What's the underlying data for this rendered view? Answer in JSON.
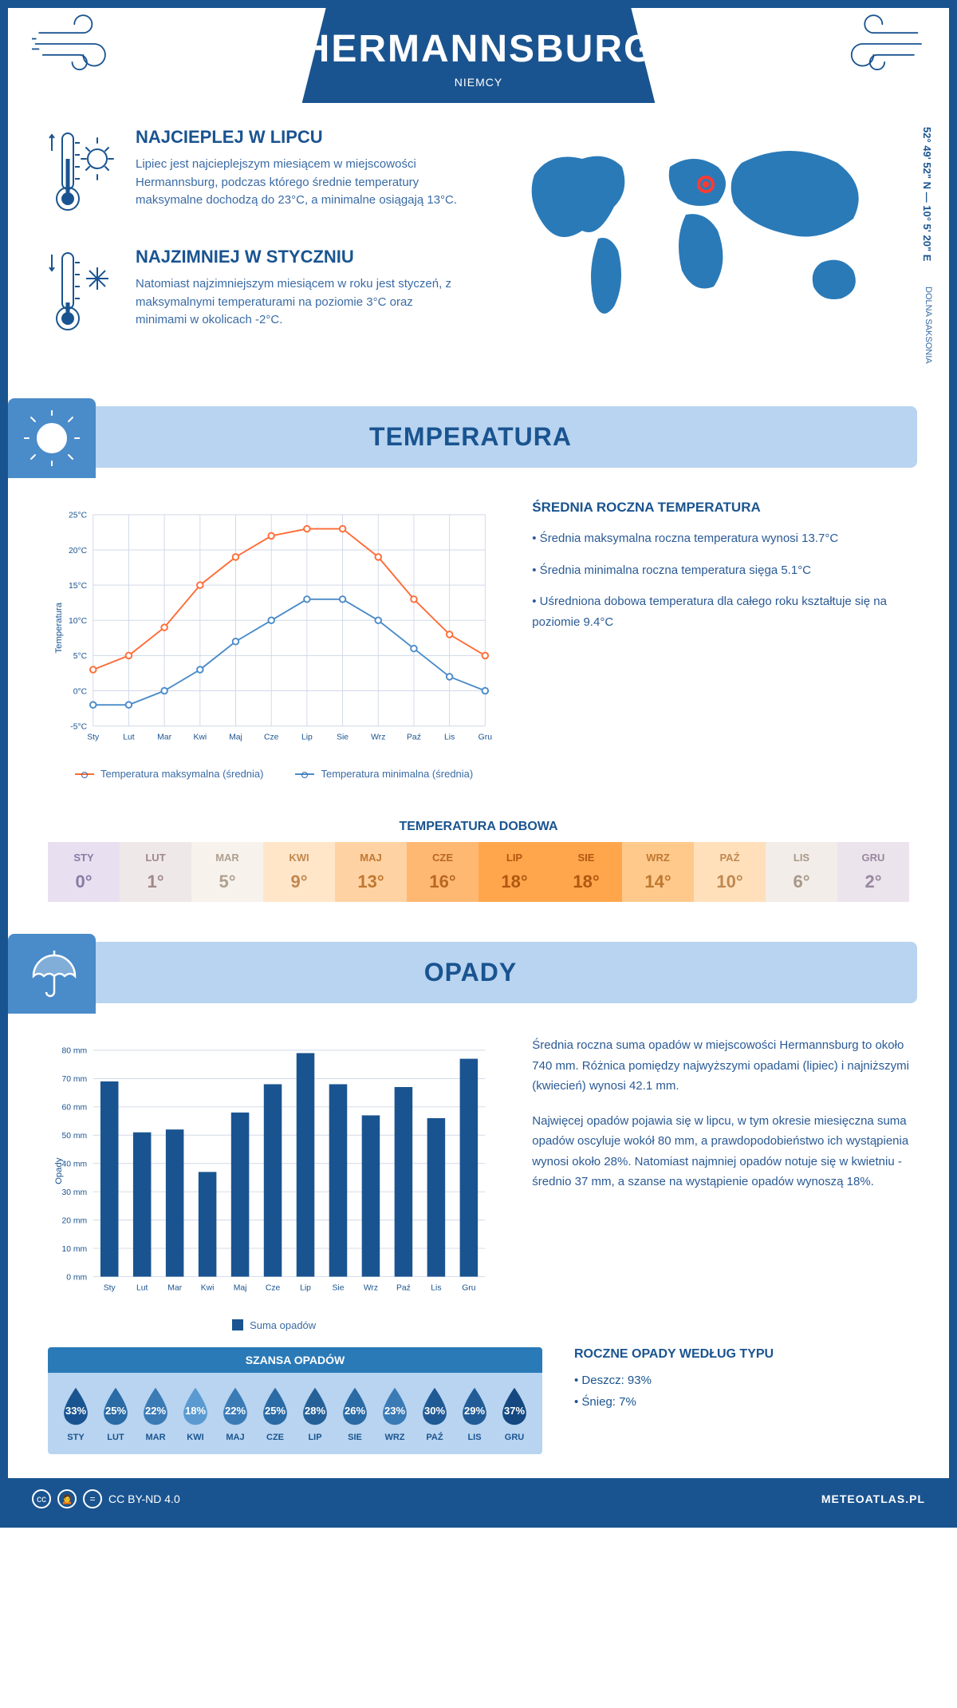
{
  "colors": {
    "primary": "#1a5490",
    "light_blue": "#b8d4f0",
    "mid_blue": "#4a8bc9",
    "line_max": "#ff6b35",
    "line_min": "#4a8bc9",
    "bar": "#1a5490",
    "marker": "#ff3b30"
  },
  "header": {
    "city": "HERMANNSBURG",
    "country": "NIEMCY"
  },
  "coords": "52° 49' 52\" N — 10° 5' 20\" E",
  "region": "DOLNA SAKSONIA",
  "intro": {
    "hot": {
      "title": "NAJCIEPLEJ W LIPCU",
      "text": "Lipiec jest najcieplejszym miesiącem w miejscowości Hermannsburg, podczas którego średnie temperatury maksymalne dochodzą do 23°C, a minimalne osiągają 13°C."
    },
    "cold": {
      "title": "NAJZIMNIEJ W STYCZNIU",
      "text": "Natomiast najzimniejszym miesiącem w roku jest styczeń, z maksymalnymi temperaturami na poziomie 3°C oraz minimami w okolicach -2°C."
    }
  },
  "temp_section": {
    "title": "TEMPERATURA"
  },
  "months": [
    "Sty",
    "Lut",
    "Mar",
    "Kwi",
    "Maj",
    "Cze",
    "Lip",
    "Sie",
    "Wrz",
    "Paź",
    "Lis",
    "Gru"
  ],
  "months_upper": [
    "STY",
    "LUT",
    "MAR",
    "KWI",
    "MAJ",
    "CZE",
    "LIP",
    "SIE",
    "WRZ",
    "PAŹ",
    "LIS",
    "GRU"
  ],
  "temp_chart": {
    "type": "line",
    "ylabel": "Temperatura",
    "ylim": [
      -5,
      25
    ],
    "yticks": [
      -5,
      0,
      5,
      10,
      15,
      20,
      25
    ],
    "ytick_labels": [
      "-5°C",
      "0°C",
      "5°C",
      "10°C",
      "15°C",
      "20°C",
      "25°C"
    ],
    "series": [
      {
        "name": "Temperatura maksymalna (średnia)",
        "color": "#ff6b35",
        "values": [
          3,
          5,
          9,
          15,
          19,
          22,
          23,
          23,
          19,
          13,
          8,
          5
        ]
      },
      {
        "name": "Temperatura minimalna (średnia)",
        "color": "#4a8bc9",
        "values": [
          -2,
          -2,
          0,
          3,
          7,
          10,
          13,
          13,
          10,
          6,
          2,
          0
        ]
      }
    ],
    "grid_color": "#d0d8e8",
    "background": "#ffffff"
  },
  "temp_summary": {
    "title": "ŚREDNIA ROCZNA TEMPERATURA",
    "bullets": [
      "Średnia maksymalna roczna temperatura wynosi 13.7°C",
      "Średnia minimalna roczna temperatura sięga 5.1°C",
      "Uśredniona dobowa temperatura dla całego roku kształtuje się na poziomie 9.4°C"
    ]
  },
  "dobowa": {
    "title": "TEMPERATURA DOBOWA",
    "values": [
      "0°",
      "1°",
      "5°",
      "9°",
      "13°",
      "16°",
      "18°",
      "18°",
      "14°",
      "10°",
      "6°",
      "2°"
    ],
    "bg_colors": [
      "#e8e0f0",
      "#efe8e8",
      "#f7f2ec",
      "#ffe6c9",
      "#ffd2a3",
      "#ffb872",
      "#ffa64d",
      "#ffa64d",
      "#ffc98c",
      "#ffe0bb",
      "#f2ede8",
      "#ece4ec"
    ],
    "text_colors": [
      "#8a7aa5",
      "#a08888",
      "#b0a090",
      "#c08850",
      "#c07830",
      "#b86820",
      "#b05810",
      "#b05810",
      "#c07830",
      "#c08850",
      "#a89888",
      "#9888a0"
    ]
  },
  "rain_section": {
    "title": "OPADY"
  },
  "rain_chart": {
    "type": "bar",
    "ylabel": "Opady",
    "ylim": [
      0,
      80
    ],
    "yticks": [
      0,
      10,
      20,
      30,
      40,
      50,
      60,
      70,
      80
    ],
    "ytick_labels": [
      "0 mm",
      "10 mm",
      "20 mm",
      "30 mm",
      "40 mm",
      "50 mm",
      "60 mm",
      "70 mm",
      "80 mm"
    ],
    "values": [
      69,
      51,
      52,
      37,
      58,
      68,
      79,
      68,
      57,
      67,
      56,
      77
    ],
    "bar_color": "#1a5490",
    "legend": "Suma opadów",
    "grid_color": "#d0d8e8"
  },
  "rain_text": {
    "p1": "Średnia roczna suma opadów w miejscowości Hermannsburg to około 740 mm. Różnica pomiędzy najwyższymi opadami (lipiec) i najniższymi (kwiecień) wynosi 42.1 mm.",
    "p2": "Najwięcej opadów pojawia się w lipcu, w tym okresie miesięczna suma opadów oscyluje wokół 80 mm, a prawdopodobieństwo ich wystąpienia wynosi około 28%. Natomiast najmniej opadów notuje się w kwietniu - średnio 37 mm, a szanse na wystąpienie opadów wynoszą 18%."
  },
  "szansa": {
    "title": "SZANSA OPADÓW",
    "values": [
      "33%",
      "25%",
      "22%",
      "18%",
      "22%",
      "25%",
      "28%",
      "26%",
      "23%",
      "30%",
      "29%",
      "37%"
    ],
    "colors": [
      "#1a5490",
      "#2a6aa5",
      "#3a7ab5",
      "#5a9ad0",
      "#3a7ab5",
      "#2a6aa5",
      "#256098",
      "#2a6aa5",
      "#3a7ab5",
      "#205a95",
      "#225c97",
      "#154880"
    ]
  },
  "rain_types": {
    "title": "ROCZNE OPADY WEDŁUG TYPU",
    "items": [
      "Deszcz: 93%",
      "Śnieg: 7%"
    ]
  },
  "footer": {
    "license": "CC BY-ND 4.0",
    "site": "METEOATLAS.PL"
  }
}
